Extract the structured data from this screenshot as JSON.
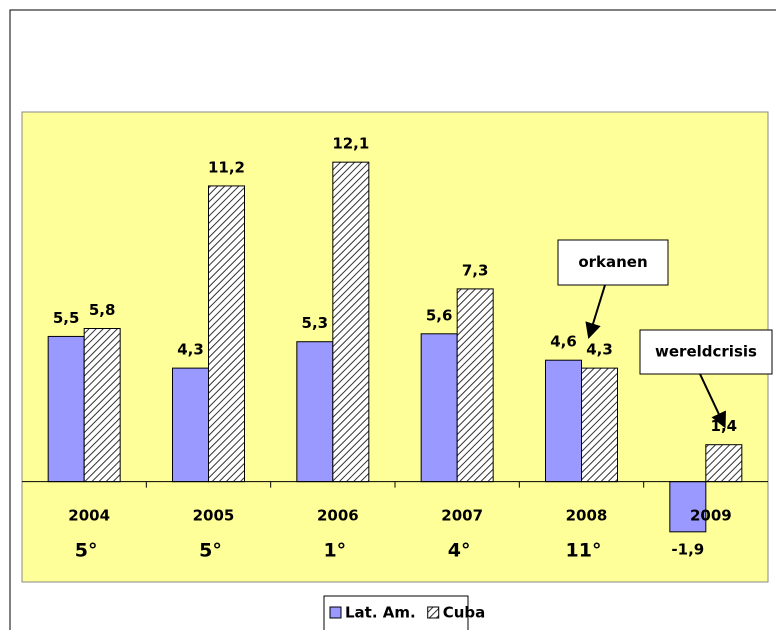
{
  "chart_data": {
    "type": "bar",
    "categories": [
      "2004",
      "2005",
      "2006",
      "2007",
      "2008",
      "2009"
    ],
    "series": [
      {
        "name": "Lat. Am.",
        "color": "#9999ff",
        "values": [
          5.5,
          4.3,
          5.3,
          5.6,
          4.6,
          -1.9
        ],
        "value_labels": [
          "5,5",
          "4,3",
          "5,3",
          "5,6",
          "4,6",
          "-1,9"
        ]
      },
      {
        "name": "Cuba",
        "color": "#333333",
        "pattern": "hatch",
        "values": [
          5.8,
          11.2,
          12.1,
          7.3,
          4.3,
          1.4
        ],
        "value_labels": [
          "5,8",
          "11,2",
          "12,1",
          "7,3",
          "4,3",
          "1,4"
        ]
      }
    ],
    "ranks": [
      "5°",
      "5°",
      "1°",
      "4°",
      "11°",
      null
    ],
    "ylim": [
      -3.8,
      14
    ],
    "background": "#ffff99",
    "legend": "bottom",
    "annotations": [
      {
        "text": "orkanen",
        "target_series": 1,
        "target_index": 4
      },
      {
        "text": "wereldcrisis",
        "target_series": 1,
        "target_index": 5
      }
    ]
  }
}
